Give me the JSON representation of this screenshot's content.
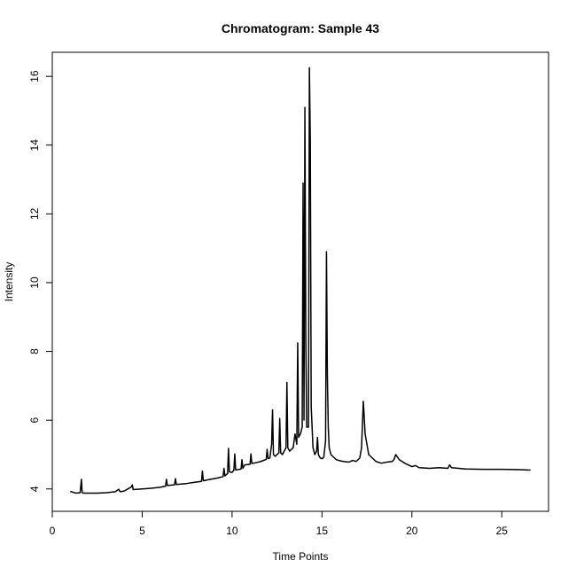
{
  "chart_data": {
    "type": "line",
    "title": "Chromatogram: Sample  43",
    "xlabel": "Time Points",
    "ylabel": "Intensity",
    "xlim": [
      0,
      27.6
    ],
    "ylim": [
      3.35,
      16.7
    ],
    "xticks": [
      0,
      5,
      10,
      15,
      20,
      25
    ],
    "yticks": [
      4,
      6,
      8,
      10,
      12,
      14,
      16
    ],
    "xtick_labels": [
      "0",
      "5",
      "10",
      "15",
      "20",
      "25"
    ],
    "ytick_labels": [
      "4",
      "6",
      "8",
      "10",
      "12",
      "14",
      "16"
    ],
    "grid": false,
    "legend": "none",
    "line_color": "#000000",
    "series": [
      {
        "x": [
          1.0,
          1.3,
          1.55,
          1.62,
          1.66,
          1.72,
          2.0,
          2.5,
          3.0,
          3.5,
          3.7,
          3.75,
          3.8,
          4.0,
          4.4,
          4.45,
          4.5,
          5.0,
          5.5,
          6.0,
          6.3,
          6.35,
          6.4,
          6.8,
          6.85,
          6.9,
          7.5,
          8.0,
          8.3,
          8.35,
          8.4,
          8.8,
          9.2,
          9.5,
          9.55,
          9.6,
          9.75,
          9.8,
          9.85,
          10.0,
          10.1,
          10.15,
          10.2,
          10.5,
          10.55,
          10.6,
          10.7,
          11.0,
          11.05,
          11.1,
          11.3,
          11.6,
          11.9,
          11.95,
          12.0,
          12.1,
          12.2,
          12.25,
          12.3,
          12.4,
          12.6,
          12.65,
          12.7,
          12.8,
          13.0,
          13.05,
          13.1,
          13.2,
          13.4,
          13.5,
          13.6,
          13.65,
          13.7,
          13.8,
          13.9,
          13.95,
          14.0,
          14.05,
          14.1,
          14.15,
          14.25,
          14.3,
          14.35,
          14.4,
          14.5,
          14.6,
          14.7,
          14.75,
          14.8,
          14.9,
          15.0,
          15.1,
          15.2,
          15.25,
          15.3,
          15.35,
          15.4,
          15.5,
          15.7,
          15.8,
          16.0,
          16.2,
          16.5,
          16.7,
          16.9,
          17.0,
          17.1,
          17.2,
          17.3,
          17.4,
          17.6,
          18.0,
          18.3,
          18.6,
          18.9,
          19.0,
          19.1,
          19.3,
          19.6,
          20.0,
          20.2,
          20.4,
          21.0,
          21.5,
          22.0,
          22.1,
          22.2,
          23.0,
          24.0,
          25.0,
          26.0,
          26.6
        ],
        "y": [
          3.93,
          3.88,
          3.89,
          4.28,
          3.9,
          3.88,
          3.88,
          3.88,
          3.89,
          3.92,
          3.99,
          3.94,
          3.92,
          3.94,
          4.06,
          4.12,
          3.98,
          4.0,
          4.02,
          4.05,
          4.08,
          4.28,
          4.1,
          4.12,
          4.3,
          4.13,
          4.16,
          4.2,
          4.22,
          4.52,
          4.24,
          4.28,
          4.32,
          4.36,
          4.6,
          4.38,
          4.45,
          5.18,
          4.5,
          4.48,
          4.55,
          5.02,
          4.55,
          4.58,
          4.85,
          4.6,
          4.7,
          4.72,
          5.02,
          4.74,
          4.76,
          4.8,
          4.86,
          5.15,
          4.88,
          4.9,
          5.3,
          6.3,
          5.0,
          4.95,
          5.05,
          6.05,
          5.05,
          5.0,
          5.2,
          7.1,
          5.2,
          5.1,
          5.2,
          5.6,
          5.3,
          8.25,
          5.5,
          5.6,
          5.8,
          12.9,
          6.0,
          15.1,
          8.4,
          5.8,
          5.8,
          16.25,
          14.2,
          6.4,
          5.2,
          5.0,
          5.1,
          5.5,
          5.0,
          4.9,
          4.88,
          4.92,
          5.4,
          10.9,
          7.3,
          5.8,
          5.2,
          5.0,
          4.9,
          4.85,
          4.82,
          4.8,
          4.78,
          4.83,
          4.8,
          4.85,
          4.9,
          5.2,
          6.55,
          5.6,
          5.0,
          4.8,
          4.75,
          4.78,
          4.8,
          4.85,
          5.0,
          4.85,
          4.75,
          4.65,
          4.68,
          4.62,
          4.6,
          4.62,
          4.6,
          4.7,
          4.62,
          4.58,
          4.57,
          4.57,
          4.56,
          4.55
        ]
      }
    ]
  }
}
